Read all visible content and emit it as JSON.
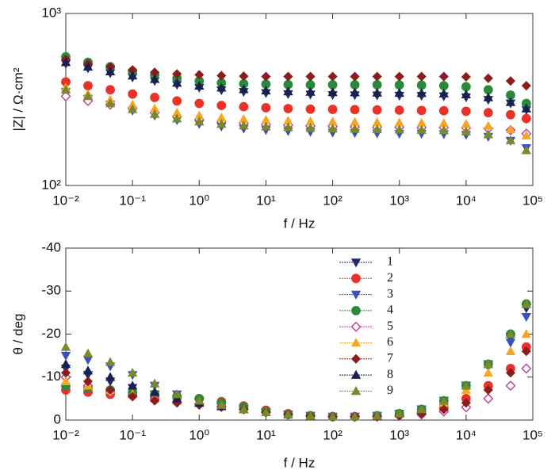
{
  "chart_data": [
    {
      "type": "scatter",
      "xscale": "log",
      "yscale": "log",
      "xlabel": "f / Hz",
      "ylabel": "|Z| / Ω·cm²",
      "xlim": [
        0.01,
        100000
      ],
      "ylim": [
        100,
        1000
      ],
      "xticks": [
        {
          "value": 0.01,
          "label": "10⁻²"
        },
        {
          "value": 0.1,
          "label": "10⁻¹"
        },
        {
          "value": 1,
          "label": "10⁰"
        },
        {
          "value": 10,
          "label": "10¹"
        },
        {
          "value": 100,
          "label": "10²"
        },
        {
          "value": 1000,
          "label": "10³"
        },
        {
          "value": 10000,
          "label": "10⁴"
        },
        {
          "value": 100000,
          "label": "10⁵"
        }
      ],
      "yticks": [
        {
          "value": 100,
          "label": "10²"
        },
        {
          "value": 1000,
          "label": "10³"
        }
      ],
      "x": [
        0.01,
        0.0215,
        0.0464,
        0.1,
        0.215,
        0.464,
        1,
        2.15,
        4.64,
        10,
        21.5,
        46.4,
        100,
        215,
        464,
        1000,
        2150,
        4640,
        10000,
        21500,
        46400,
        80000
      ],
      "series": [
        {
          "color": "#1f2a6b",
          "marker": "triangle-down",
          "filled": true,
          "values": [
            510,
            480,
            450,
            425,
            405,
            385,
            370,
            358,
            350,
            345,
            340,
            338,
            336,
            335,
            334,
            333,
            332,
            330,
            326,
            315,
            300,
            275
          ]
        },
        {
          "color": "#e8322a",
          "marker": "circle",
          "filled": true,
          "values": [
            400,
            380,
            360,
            340,
            325,
            310,
            300,
            292,
            287,
            283,
            280,
            278,
            277,
            276,
            275,
            274,
            273,
            272,
            270,
            265,
            258,
            245
          ]
        },
        {
          "color": "#3a4fc0",
          "marker": "triangle-down",
          "filled": true,
          "values": [
            350,
            320,
            295,
            272,
            255,
            240,
            228,
            220,
            214,
            210,
            207,
            205,
            203,
            202,
            201,
            200,
            200,
            199,
            197,
            192,
            182,
            165
          ]
        },
        {
          "color": "#2a8a3a",
          "marker": "circle",
          "filled": true,
          "values": [
            560,
            520,
            490,
            460,
            440,
            420,
            405,
            395,
            390,
            388,
            386,
            385,
            385,
            385,
            385,
            384,
            383,
            380,
            375,
            360,
            335,
            300
          ]
        },
        {
          "color": "#c03a9a",
          "marker": "diamond",
          "filled": false,
          "values": [
            330,
            310,
            295,
            280,
            265,
            252,
            242,
            235,
            230,
            226,
            224,
            222,
            220,
            219,
            218,
            218,
            217,
            217,
            216,
            214,
            210,
            200
          ]
        },
        {
          "color": "#f5a623",
          "marker": "triangle-up",
          "filled": true,
          "values": [
            370,
            340,
            315,
            295,
            280,
            265,
            255,
            248,
            243,
            240,
            238,
            236,
            235,
            234,
            233,
            232,
            231,
            230,
            228,
            222,
            212,
            195
          ]
        },
        {
          "color": "#8a1e1e",
          "marker": "diamond",
          "filled": true,
          "values": [
            540,
            510,
            490,
            470,
            455,
            445,
            440,
            435,
            432,
            430,
            430,
            430,
            430,
            430,
            430,
            430,
            430,
            430,
            428,
            420,
            405,
            380
          ]
        },
        {
          "color": "#1a2050",
          "marker": "triangle-up",
          "filled": true,
          "values": [
            520,
            490,
            460,
            435,
            415,
            395,
            380,
            370,
            362,
            356,
            352,
            350,
            348,
            347,
            346,
            345,
            344,
            342,
            338,
            325,
            305,
            280
          ]
        },
        {
          "color": "#7a8a2a",
          "marker": "triangle-up",
          "filled": true,
          "values": [
            360,
            330,
            300,
            278,
            260,
            245,
            235,
            228,
            223,
            220,
            218,
            216,
            214,
            213,
            212,
            211,
            210,
            209,
            206,
            198,
            183,
            160
          ]
        }
      ]
    },
    {
      "type": "scatter",
      "xscale": "log",
      "xlabel": "f / Hz",
      "ylabel": "θ / deg",
      "xlim": [
        0.01,
        100000
      ],
      "ylim": [
        0,
        -40
      ],
      "xticks": [
        {
          "value": 0.01,
          "label": "10⁻²"
        },
        {
          "value": 0.1,
          "label": "10⁻¹"
        },
        {
          "value": 1,
          "label": "10⁰"
        },
        {
          "value": 10,
          "label": "10¹"
        },
        {
          "value": 100,
          "label": "10²"
        },
        {
          "value": 1000,
          "label": "10³"
        },
        {
          "value": 10000,
          "label": "10⁴"
        },
        {
          "value": 100000,
          "label": "10⁵"
        }
      ],
      "yticks": [
        0,
        -10,
        -20,
        -30,
        -40
      ],
      "legend": "center right",
      "x": [
        0.01,
        0.0215,
        0.0464,
        0.1,
        0.215,
        0.464,
        1,
        2.15,
        4.64,
        10,
        21.5,
        46.4,
        100,
        215,
        464,
        1000,
        2150,
        4640,
        10000,
        21500,
        46400,
        80000
      ],
      "series": [
        {
          "name": "1",
          "color": "#1f2a6b",
          "marker": "triangle-down",
          "filled": true,
          "values": [
            -12,
            -10.5,
            -9,
            -7.5,
            -6,
            -5,
            -4,
            -3.2,
            -2.5,
            -1.8,
            -1.3,
            -1,
            -0.8,
            -0.8,
            -1,
            -1.5,
            -2.5,
            -4.5,
            -8,
            -13,
            -19,
            -26
          ]
        },
        {
          "name": "2",
          "color": "#e8322a",
          "marker": "circle",
          "filled": true,
          "values": [
            -7,
            -6.5,
            -6,
            -5.8,
            -5.5,
            -5.2,
            -5,
            -4.3,
            -3.3,
            -2.3,
            -1.5,
            -1,
            -0.8,
            -0.8,
            -1,
            -1.3,
            -2,
            -3,
            -5,
            -8,
            -12,
            -17
          ]
        },
        {
          "name": "3",
          "color": "#3a4fc0",
          "marker": "triangle-down",
          "filled": true,
          "values": [
            -15,
            -14,
            -12.5,
            -10.5,
            -8,
            -6,
            -4.5,
            -3.5,
            -2.5,
            -1.8,
            -1.3,
            -1,
            -0.8,
            -0.8,
            -1,
            -1.5,
            -2.5,
            -4.5,
            -8,
            -12.5,
            -18,
            -24
          ]
        },
        {
          "name": "4",
          "color": "#2a8a3a",
          "marker": "circle",
          "filled": true,
          "values": [
            -8,
            -7.5,
            -7,
            -6.5,
            -6,
            -5.5,
            -5,
            -4,
            -3,
            -2,
            -1.3,
            -1,
            -0.8,
            -0.8,
            -1,
            -1.5,
            -2.5,
            -4.5,
            -8,
            -13,
            -20,
            -27
          ]
        },
        {
          "name": "5",
          "color": "#c03a9a",
          "marker": "diamond",
          "filled": false,
          "values": [
            -10,
            -8,
            -6.5,
            -5.5,
            -4.8,
            -4.2,
            -3.8,
            -3.2,
            -2.5,
            -1.8,
            -1.3,
            -1,
            -0.8,
            -0.8,
            -0.8,
            -1,
            -1.3,
            -2,
            -3,
            -5,
            -8,
            -12
          ]
        },
        {
          "name": "6",
          "color": "#f5a623",
          "marker": "triangle-up",
          "filled": true,
          "values": [
            -9,
            -8,
            -7,
            -6,
            -5,
            -4.5,
            -4,
            -3.3,
            -2.5,
            -1.8,
            -1.3,
            -1,
            -0.8,
            -0.8,
            -1,
            -1.5,
            -2.5,
            -4,
            -7,
            -11,
            -16,
            -20
          ]
        },
        {
          "name": "7",
          "color": "#8a1e1e",
          "marker": "diamond",
          "filled": true,
          "values": [
            -11,
            -9,
            -7,
            -5.5,
            -4.5,
            -4,
            -3.5,
            -3,
            -2.5,
            -1.8,
            -1.3,
            -1,
            -0.8,
            -0.8,
            -0.8,
            -1,
            -1.5,
            -2.5,
            -4,
            -7,
            -11,
            -16
          ]
        },
        {
          "name": "8",
          "color": "#1a2050",
          "marker": "triangle-up",
          "filled": true,
          "values": [
            -13,
            -11.5,
            -10,
            -8,
            -6.5,
            -5,
            -4,
            -3.2,
            -2.5,
            -1.8,
            -1.3,
            -1,
            -0.8,
            -0.8,
            -1,
            -1.5,
            -2.5,
            -4.5,
            -8,
            -13,
            -20,
            -27
          ]
        },
        {
          "name": "9",
          "color": "#7a8a2a",
          "marker": "triangle-up",
          "filled": true,
          "values": [
            -17,
            -15.5,
            -13.5,
            -11,
            -8.5,
            -6,
            -4.5,
            -3.5,
            -2.5,
            -1.8,
            -1.3,
            -1,
            -0.8,
            -0.8,
            -1,
            -1.5,
            -2.5,
            -4.5,
            -8,
            -13,
            -20,
            -27
          ]
        }
      ]
    }
  ]
}
